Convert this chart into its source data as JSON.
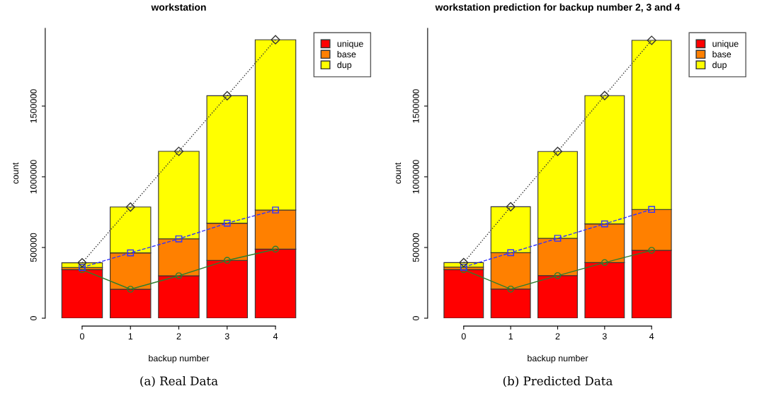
{
  "chart_data": [
    {
      "type": "bar",
      "stacked": true,
      "title": "workstation",
      "xlabel": "backup number",
      "ylabel": "count",
      "categories": [
        "0",
        "1",
        "2",
        "3",
        "4"
      ],
      "ylim": [
        0,
        2050000
      ],
      "yticks": [
        0,
        500000,
        1000000,
        1500000
      ],
      "legend": "top right",
      "grid": false,
      "annotations": [
        "(a) Real Data"
      ],
      "series": [
        {
          "name": "unique",
          "color": "#ff0000",
          "values": [
            343000,
            205000,
            300000,
            409000,
            488000
          ]
        },
        {
          "name": "base",
          "color": "#ff8000",
          "values": [
            16000,
            257000,
            261000,
            263000,
            277000
          ]
        },
        {
          "name": "dup",
          "color": "#ffff00",
          "values": [
            33000,
            324000,
            619000,
            901000,
            1204000
          ]
        },
        {
          "type": "line",
          "color": "#2e7d2e",
          "marker": "circle",
          "line_style": "solid",
          "values": [
            343000,
            205000,
            300000,
            409000,
            488000
          ]
        },
        {
          "type": "line",
          "color": "#3333ff",
          "marker": "square",
          "line_style": "dashed",
          "values": [
            359000,
            462000,
            561000,
            672000,
            765000
          ]
        },
        {
          "type": "line",
          "color": "#333333",
          "marker": "diamond",
          "line_style": "dotted",
          "values": [
            392000,
            786000,
            1180000,
            1573000,
            1969000
          ]
        }
      ]
    },
    {
      "type": "bar",
      "stacked": true,
      "title": "workstation prediction for backup number 2, 3 and 4",
      "xlabel": "backup number",
      "ylabel": "count",
      "categories": [
        "0",
        "1",
        "2",
        "3",
        "4"
      ],
      "ylim": [
        0,
        2050000
      ],
      "yticks": [
        0,
        500000,
        1000000,
        1500000
      ],
      "legend": "top right",
      "grid": false,
      "annotations": [
        "(b) Predicted Data"
      ],
      "series": [
        {
          "name": "unique",
          "color": "#ff0000",
          "values": [
            343000,
            206000,
            301000,
            393000,
            480000
          ]
        },
        {
          "name": "base",
          "color": "#ff8000",
          "values": [
            18000,
            257000,
            264000,
            274000,
            289000
          ]
        },
        {
          "name": "dup",
          "color": "#ffff00",
          "values": [
            32000,
            325000,
            614000,
            907000,
            1196000
          ]
        },
        {
          "type": "line",
          "color": "#2e7d2e",
          "marker": "circle",
          "line_style": "solid",
          "values": [
            343000,
            206000,
            301000,
            393000,
            480000
          ]
        },
        {
          "type": "line",
          "color": "#3333ff",
          "marker": "square",
          "line_style": "dashed",
          "values": [
            361000,
            463000,
            565000,
            667000,
            769000
          ]
        },
        {
          "type": "line",
          "color": "#333333",
          "marker": "diamond",
          "line_style": "dotted",
          "values": [
            393000,
            788000,
            1179000,
            1574000,
            1965000
          ]
        }
      ]
    }
  ]
}
